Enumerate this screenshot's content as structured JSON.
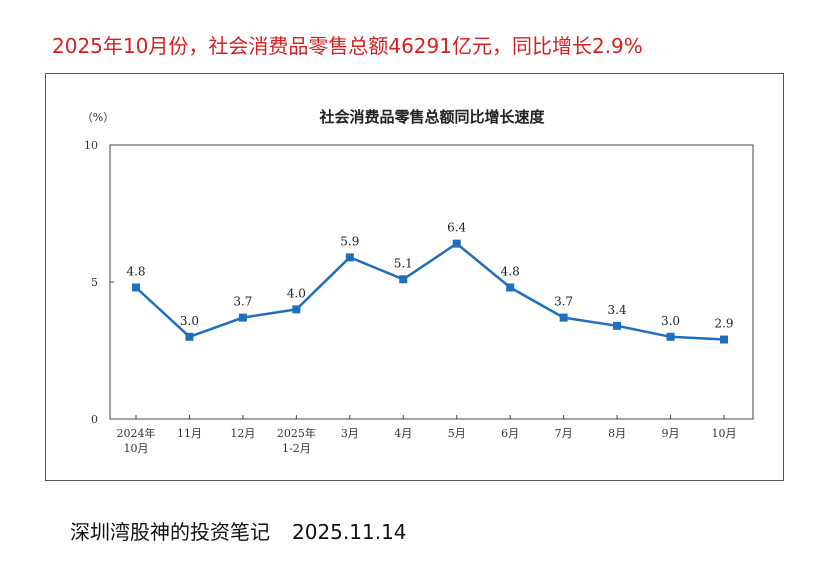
{
  "headline": "2025年10月份，社会消费品零售总额46291亿元，同比增长2.9%",
  "footer": {
    "author": "深圳湾股神的投资笔记",
    "date": "2025.11.14"
  },
  "colors": {
    "headline": "#d42020",
    "line": "#1f6fbf"
  },
  "chart_data": {
    "type": "line",
    "title": "社会消费品零售总额同比增长速度",
    "ylabel": "（%）",
    "xlabel": "",
    "ylim": [
      0,
      10
    ],
    "yticks": [
      "0",
      "5",
      "10"
    ],
    "categories": [
      [
        "2024年",
        "10月"
      ],
      [
        "11月"
      ],
      [
        "12月"
      ],
      [
        "2025年",
        "1-2月"
      ],
      [
        "3月"
      ],
      [
        "4月"
      ],
      [
        "5月"
      ],
      [
        "6月"
      ],
      [
        "7月"
      ],
      [
        "8月"
      ],
      [
        "9月"
      ],
      [
        "10月"
      ]
    ],
    "values": [
      4.8,
      3.0,
      3.7,
      4.0,
      5.9,
      5.1,
      6.4,
      4.8,
      3.7,
      3.4,
      3.0,
      2.9
    ],
    "value_labels": [
      "4.8",
      "3.0",
      "3.7",
      "4.0",
      "5.9",
      "5.1",
      "6.4",
      "4.8",
      "3.7",
      "3.4",
      "3.0",
      "2.9"
    ],
    "grid": false,
    "legend": "none"
  }
}
